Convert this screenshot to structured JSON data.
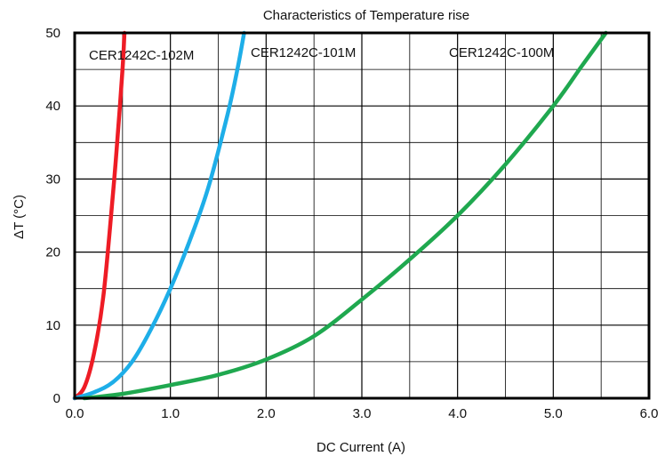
{
  "chart_data": {
    "type": "line",
    "title": "Characteristics of Temperature rise",
    "xlabel": "DC Current (A)",
    "ylabel": "ΔT (°C)",
    "xlim": [
      0,
      6
    ],
    "ylim": [
      0,
      50
    ],
    "x_ticks": [
      "0.0",
      "1.0",
      "2.0",
      "3.0",
      "4.0",
      "5.0",
      "6.0"
    ],
    "y_ticks": [
      "0",
      "10",
      "20",
      "30",
      "40",
      "50"
    ],
    "grid": true,
    "series": [
      {
        "name": "CER1242C-102M",
        "color": "#ee1c25",
        "points": [
          [
            0,
            0
          ],
          [
            0.1,
            1.5
          ],
          [
            0.2,
            6
          ],
          [
            0.3,
            14
          ],
          [
            0.4,
            28
          ],
          [
            0.45,
            36
          ],
          [
            0.5,
            45
          ],
          [
            0.52,
            50
          ]
        ]
      },
      {
        "name": "CER1242C-101M",
        "color": "#1eaee8",
        "points": [
          [
            0,
            0
          ],
          [
            0.2,
            0.8
          ],
          [
            0.4,
            2.2
          ],
          [
            0.6,
            5
          ],
          [
            0.8,
            9.5
          ],
          [
            1.0,
            15
          ],
          [
            1.2,
            21.5
          ],
          [
            1.4,
            29
          ],
          [
            1.6,
            39
          ],
          [
            1.7,
            45
          ],
          [
            1.77,
            50
          ]
        ]
      },
      {
        "name": "CER1242C-100M",
        "color": "#1fa84f",
        "points": [
          [
            0.1,
            0
          ],
          [
            0.5,
            0.6
          ],
          [
            1.0,
            1.8
          ],
          [
            1.5,
            3.2
          ],
          [
            2.0,
            5.3
          ],
          [
            2.5,
            8.5
          ],
          [
            3.0,
            13.5
          ],
          [
            3.5,
            19
          ],
          [
            4.0,
            25
          ],
          [
            4.5,
            32
          ],
          [
            5.0,
            40
          ],
          [
            5.3,
            45.5
          ],
          [
            5.55,
            50
          ]
        ]
      }
    ]
  }
}
